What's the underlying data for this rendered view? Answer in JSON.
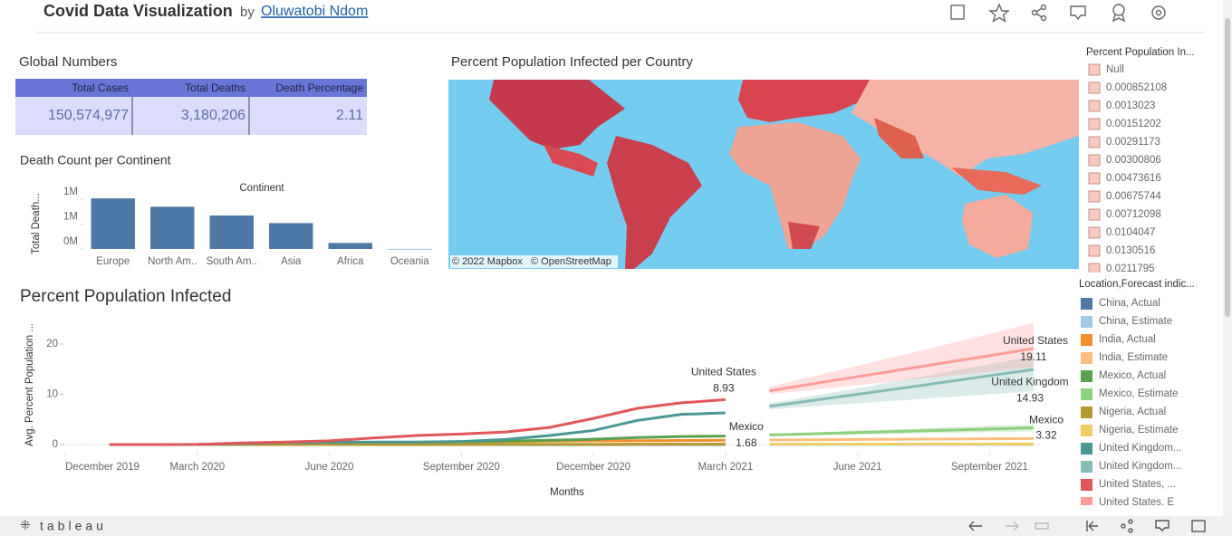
{
  "header": {
    "title": "Covid Data Visualization",
    "by": "by",
    "author": "Oluwatobi Ndom"
  },
  "global_numbers": {
    "title": "Global Numbers",
    "columns": [
      "Total Cases",
      "Total Deaths",
      "Death Percentage"
    ],
    "row": [
      "150,574,977",
      "3,180,206",
      "2.11"
    ]
  },
  "map": {
    "title": "Percent Population Infected per Country",
    "attribution": [
      "© 2022 Mapbox",
      "© OpenStreetMap"
    ],
    "legend_title": "Percent Population In...",
    "legend": [
      "Null",
      "0.000852108",
      "0.0013023",
      "0.00151202",
      "0.00291173",
      "0.00300806",
      "0.00473616",
      "0.00675744",
      "0.00712098",
      "0.0104047",
      "0.0130516",
      "0.0211795"
    ]
  },
  "chart_data": [
    {
      "type": "bar",
      "title": "Death Count per Continent",
      "x_label": "Continent",
      "y_label": "Total Death...",
      "categories": [
        "Europe",
        "North Am..",
        "South Am..",
        "Asia",
        "Africa",
        "Oceania"
      ],
      "values": [
        1016750,
        847942,
        672415,
        520269,
        121784,
        1046
      ],
      "color": "#4e79a7",
      "ylim": [
        0,
        1100000
      ],
      "yticks": [
        {
          "value": 0,
          "label": "0M"
        },
        {
          "value": 500000,
          "label": "1M"
        },
        {
          "value": 1000000,
          "label": "1M"
        }
      ]
    },
    {
      "type": "line",
      "title": "Percent Population Infected",
      "x_label": "Months",
      "y_label": "Avg. Percent Population ...",
      "legend_title": "Location,Forecast indic...",
      "xlim": [
        "2019-12",
        "2021-10"
      ],
      "xticks": [
        {
          "value": "2019-12",
          "label": "December 2019"
        },
        {
          "value": "2020-03",
          "label": "March 2020"
        },
        {
          "value": "2020-06",
          "label": "June 2020"
        },
        {
          "value": "2020-09",
          "label": "September 2020"
        },
        {
          "value": "2020-12",
          "label": "December 2020"
        },
        {
          "value": "2021-03",
          "label": "March 2021"
        },
        {
          "value": "2021-06",
          "label": "June 2021"
        },
        {
          "value": "2021-09",
          "label": "September 2021"
        }
      ],
      "ylim": [
        -1.5,
        24.5
      ],
      "yticks": [
        0,
        10,
        20
      ],
      "annotations": [
        "United States",
        "Mexico",
        "United States",
        "United Kingdom",
        "Mexico"
      ],
      "series": [
        {
          "name": "China, Actual",
          "color": "#4e79a7",
          "x": [
            "2020-01",
            "2020-02",
            "2020-03",
            "2020-04",
            "2020-05",
            "2020-06",
            "2020-07",
            "2020-08",
            "2020-09",
            "2020-10",
            "2020-11",
            "2020-12",
            "2021-01",
            "2021-02",
            "2021-03"
          ],
          "values": [
            0.0006,
            0.006,
            0.006,
            0.006,
            0.006,
            0.006,
            0.006,
            0.006,
            0.006,
            0.006,
            0.006,
            0.006,
            0.007,
            0.007,
            0.007
          ]
        },
        {
          "name": "China, Estimate",
          "color": "#a0cbe8",
          "x": [
            "2021-04",
            "2021-05",
            "2021-06",
            "2021-07",
            "2021-08",
            "2021-09",
            "2021-10"
          ],
          "values": [
            0.007,
            0.007,
            0.007,
            0.007,
            0.007,
            0.007,
            0.007
          ]
        },
        {
          "name": "India, Actual",
          "color": "#f28e2b",
          "x": [
            "2020-01",
            "2020-02",
            "2020-03",
            "2020-04",
            "2020-05",
            "2020-06",
            "2020-07",
            "2020-08",
            "2020-09",
            "2020-10",
            "2020-11",
            "2020-12",
            "2021-01",
            "2021-02",
            "2021-03"
          ],
          "values": [
            0,
            0,
            0,
            0,
            0.01,
            0.03,
            0.1,
            0.26,
            0.45,
            0.58,
            0.67,
            0.73,
            0.77,
            0.8,
            0.85
          ]
        },
        {
          "name": "India, Estimate",
          "color": "#ffbe7d",
          "x": [
            "2021-04",
            "2021-05",
            "2021-06",
            "2021-07",
            "2021-08",
            "2021-09",
            "2021-10"
          ],
          "values": [
            0.9,
            0.95,
            1.0,
            1.05,
            1.1,
            1.15,
            1.2
          ]
        },
        {
          "name": "Mexico, Actual",
          "color": "#59a14f",
          "x": [
            "2020-01",
            "2020-02",
            "2020-03",
            "2020-04",
            "2020-05",
            "2020-06",
            "2020-07",
            "2020-08",
            "2020-09",
            "2020-10",
            "2020-11",
            "2020-12",
            "2021-01",
            "2021-02",
            "2021-03"
          ],
          "values": [
            0,
            0,
            0,
            0.01,
            0.05,
            0.15,
            0.3,
            0.45,
            0.55,
            0.7,
            0.85,
            1.05,
            1.4,
            1.6,
            1.68
          ]
        },
        {
          "name": "Mexico, Estimate",
          "color": "#8cd17d",
          "x": [
            "2021-04",
            "2021-05",
            "2021-06",
            "2021-07",
            "2021-08",
            "2021-09",
            "2021-10"
          ],
          "values": [
            1.9,
            2.14,
            2.38,
            2.62,
            2.85,
            3.08,
            3.32
          ],
          "lower": [
            1.7,
            1.85,
            2.0,
            2.15,
            2.3,
            2.45,
            2.6
          ],
          "upper": [
            2.1,
            2.43,
            2.76,
            3.09,
            3.42,
            3.75,
            4.0
          ]
        },
        {
          "name": "Nigeria, Actual",
          "color": "#b6992d",
          "x": [
            "2020-01",
            "2020-02",
            "2020-03",
            "2020-04",
            "2020-05",
            "2020-06",
            "2020-07",
            "2020-08",
            "2020-09",
            "2020-10",
            "2020-11",
            "2020-12",
            "2021-01",
            "2021-02",
            "2021-03"
          ],
          "values": [
            0,
            0,
            0,
            0,
            0.005,
            0.01,
            0.015,
            0.02,
            0.027,
            0.03,
            0.033,
            0.04,
            0.06,
            0.07,
            0.075
          ]
        },
        {
          "name": "Nigeria, Estimate",
          "color": "#f1ce63",
          "x": [
            "2021-04",
            "2021-05",
            "2021-06",
            "2021-07",
            "2021-08",
            "2021-09",
            "2021-10"
          ],
          "values": [
            0.08,
            0.085,
            0.09,
            0.095,
            0.1,
            0.105,
            0.11
          ]
        },
        {
          "name": "United Kingdom...",
          "color": "#499894",
          "x": [
            "2020-01",
            "2020-02",
            "2020-03",
            "2020-04",
            "2020-05",
            "2020-06",
            "2020-07",
            "2020-08",
            "2020-09",
            "2020-10",
            "2020-11",
            "2020-12",
            "2021-01",
            "2021-02",
            "2021-03"
          ],
          "values": [
            0,
            0,
            0.01,
            0.2,
            0.4,
            0.45,
            0.5,
            0.5,
            0.6,
            1.0,
            1.8,
            2.8,
            4.8,
            6.0,
            6.3
          ]
        },
        {
          "name": "United Kingdom...",
          "color": "#86bcb6",
          "x": [
            "2021-04",
            "2021-05",
            "2021-06",
            "2021-07",
            "2021-08",
            "2021-09",
            "2021-10"
          ],
          "values": [
            7.6,
            8.8,
            10.0,
            11.2,
            12.45,
            13.7,
            14.93
          ],
          "lower": [
            7.0,
            7.6,
            8.2,
            8.8,
            9.4,
            10.0,
            10.6
          ],
          "upper": [
            8.2,
            9.7,
            11.2,
            12.8,
            14.4,
            16.0,
            17.6
          ]
        },
        {
          "name": "United States, ...",
          "color": "#e15759",
          "x": [
            "2020-01",
            "2020-02",
            "2020-03",
            "2020-04",
            "2020-05",
            "2020-06",
            "2020-07",
            "2020-08",
            "2020-09",
            "2020-10",
            "2020-11",
            "2020-12",
            "2021-01",
            "2021-02",
            "2021-03"
          ],
          "values": [
            0,
            0,
            0.02,
            0.3,
            0.5,
            0.75,
            1.3,
            1.8,
            2.1,
            2.5,
            3.4,
            5.2,
            7.2,
            8.3,
            8.93
          ]
        },
        {
          "name": "United States, E",
          "color": "#ff9d9a",
          "x": [
            "2021-04",
            "2021-05",
            "2021-06",
            "2021-07",
            "2021-08",
            "2021-09",
            "2021-10"
          ],
          "values": [
            10.7,
            12.1,
            13.5,
            14.9,
            16.3,
            17.7,
            19.11
          ],
          "lower": [
            10.0,
            10.9,
            11.8,
            12.7,
            13.6,
            14.5,
            15.4
          ],
          "upper": [
            11.5,
            13.6,
            15.7,
            17.8,
            19.9,
            22.0,
            24.2
          ]
        }
      ]
    }
  ],
  "footer": {
    "logo": "tableau"
  }
}
